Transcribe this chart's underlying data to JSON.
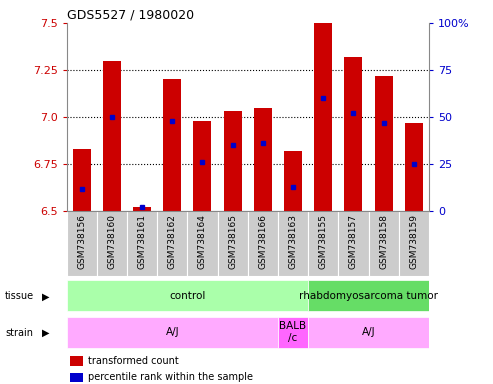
{
  "title": "GDS5527 / 1980020",
  "samples": [
    "GSM738156",
    "GSM738160",
    "GSM738161",
    "GSM738162",
    "GSM738164",
    "GSM738165",
    "GSM738166",
    "GSM738163",
    "GSM738155",
    "GSM738157",
    "GSM738158",
    "GSM738159"
  ],
  "transformed_counts": [
    6.83,
    7.3,
    6.52,
    7.2,
    6.98,
    7.03,
    7.05,
    6.82,
    7.5,
    7.32,
    7.22,
    6.97
  ],
  "percentile_ranks": [
    12,
    50,
    2,
    48,
    26,
    35,
    36,
    13,
    60,
    52,
    47,
    25
  ],
  "y_min": 6.5,
  "y_max": 7.5,
  "bar_color": "#cc0000",
  "dot_color": "#0000cc",
  "tissue_labels": [
    {
      "text": "control",
      "start": 0,
      "end": 8
    },
    {
      "text": "rhabdomyosarcoma tumor",
      "start": 8,
      "end": 12
    }
  ],
  "tissue_colors": [
    "#aaffaa",
    "#66dd66"
  ],
  "strain_labels": [
    {
      "text": "A/J",
      "start": 0,
      "end": 7
    },
    {
      "text": "BALB\n/c",
      "start": 7,
      "end": 8
    },
    {
      "text": "A/J",
      "start": 8,
      "end": 12
    }
  ],
  "strain_color": "#ffaaff",
  "strain_color_balb": "#ff66ff",
  "left_axis_color": "#cc0000",
  "right_axis_color": "#0000cc",
  "yticks_left": [
    6.5,
    6.75,
    7.0,
    7.25,
    7.5
  ],
  "yticks_right": [
    0,
    25,
    50,
    75,
    100
  ],
  "bar_width": 0.6,
  "xtick_bg": "#cccccc"
}
